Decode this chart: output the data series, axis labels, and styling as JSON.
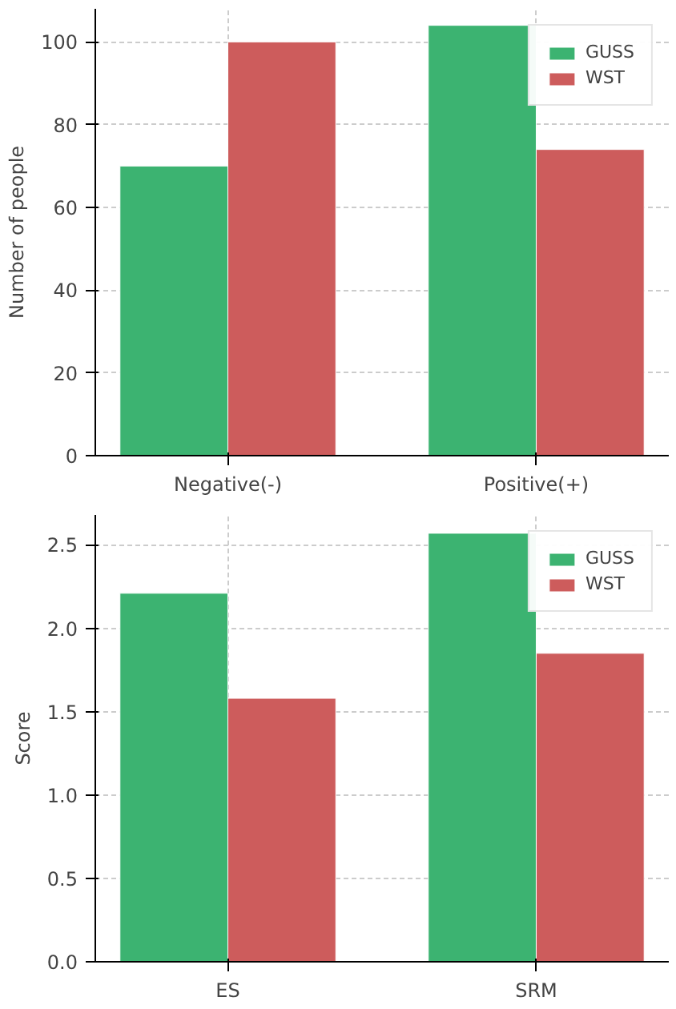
{
  "chart_data": [
    {
      "type": "bar",
      "categories": [
        "Negative(-)",
        "Positive(+)"
      ],
      "ylabel": "Number of people",
      "ylim": [
        0,
        108
      ],
      "yticks": [
        0,
        20,
        40,
        60,
        80,
        100
      ],
      "grid": true,
      "legend": "top right",
      "series": [
        {
          "name": "GUSS",
          "color": "#3cb371",
          "values": [
            70,
            104
          ]
        },
        {
          "name": "WST",
          "color": "#cd5c5c",
          "values": [
            100,
            74
          ]
        }
      ]
    },
    {
      "type": "bar",
      "categories": [
        "ES",
        "SRM"
      ],
      "ylabel": "Score",
      "ylim": [
        0,
        2.68
      ],
      "yticks": [
        {
          "value": 0,
          "label": "0.0"
        },
        {
          "value": 0.5,
          "label": "0.5"
        },
        {
          "value": 1,
          "label": "1.0"
        },
        {
          "value": 1.5,
          "label": "1.5"
        },
        {
          "value": 2,
          "label": "2.0"
        },
        {
          "value": 2.5,
          "label": "2.5"
        }
      ],
      "grid": true,
      "legend": "top right",
      "series": [
        {
          "name": "GUSS",
          "color": "#3cb371",
          "values": [
            2.21,
            2.57
          ]
        },
        {
          "name": "WST",
          "color": "#cd5c5c",
          "values": [
            1.58,
            1.85
          ]
        }
      ]
    }
  ]
}
